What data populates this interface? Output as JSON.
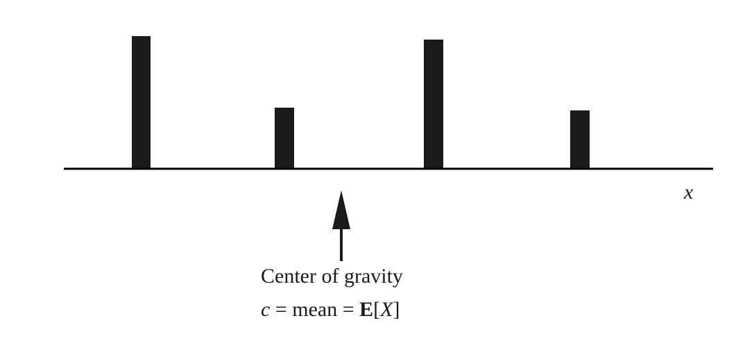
{
  "diagram": {
    "axis_label": "x",
    "caption": {
      "line1": "Center of gravity",
      "line2": {
        "var": "c",
        "eq1": " = mean = ",
        "operator": "E",
        "open": "[",
        "arg": "X",
        "close": "]"
      }
    },
    "colors": {
      "bar": "#1a1a1a",
      "axis": "#000000",
      "text": "#1a1a1a"
    }
  }
}
